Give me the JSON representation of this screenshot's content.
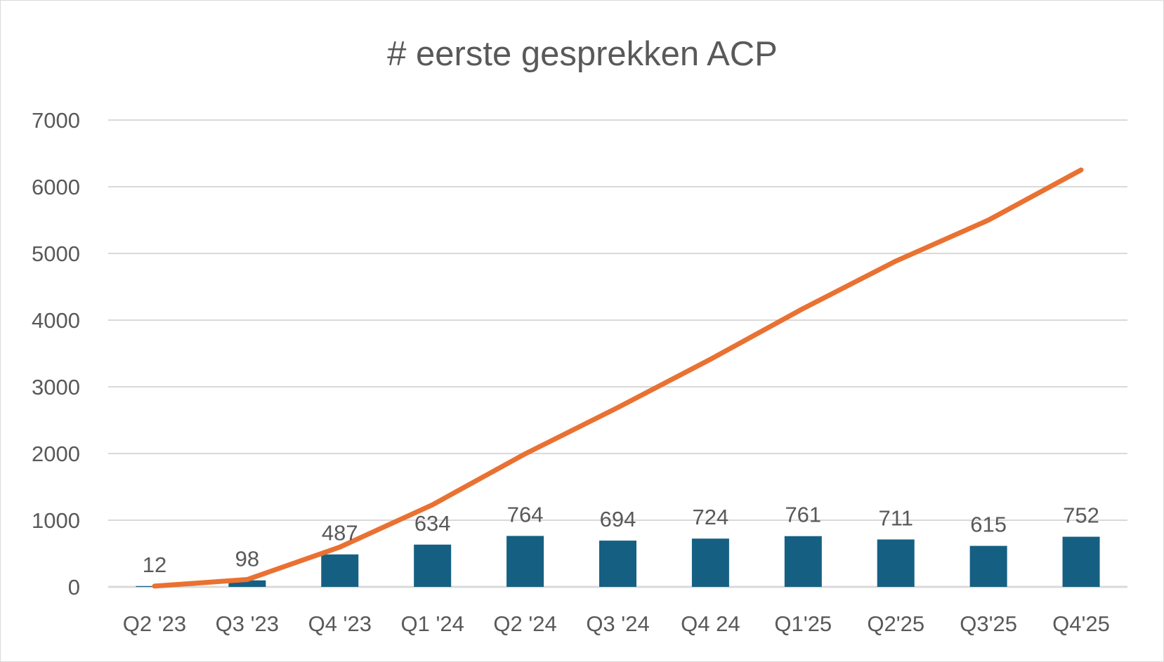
{
  "chart_data": {
    "type": "bar+line",
    "title": "# eerste gesprekken ACP",
    "categories": [
      "Q2 '23",
      "Q3 '23",
      "Q4 '23",
      "Q1 '24",
      "Q2 '24",
      "Q3 '24",
      "Q4 24",
      "Q1'25",
      "Q2'25",
      "Q3'25",
      "Q4'25"
    ],
    "series": [
      {
        "type": "bar",
        "values": [
          12,
          98,
          487,
          634,
          764,
          694,
          724,
          761,
          711,
          615,
          752
        ],
        "color": "#156082",
        "data_labels": true
      },
      {
        "type": "line",
        "values": [
          12,
          110,
          597,
          1231,
          1995,
          2689,
          3413,
          4174,
          4885,
          5500,
          6252
        ],
        "color": "#E97132"
      }
    ],
    "ylim": [
      0,
      7000
    ],
    "yticks": [
      0,
      1000,
      2000,
      3000,
      4000,
      5000,
      6000,
      7000
    ],
    "grid": true,
    "legend": "none"
  }
}
